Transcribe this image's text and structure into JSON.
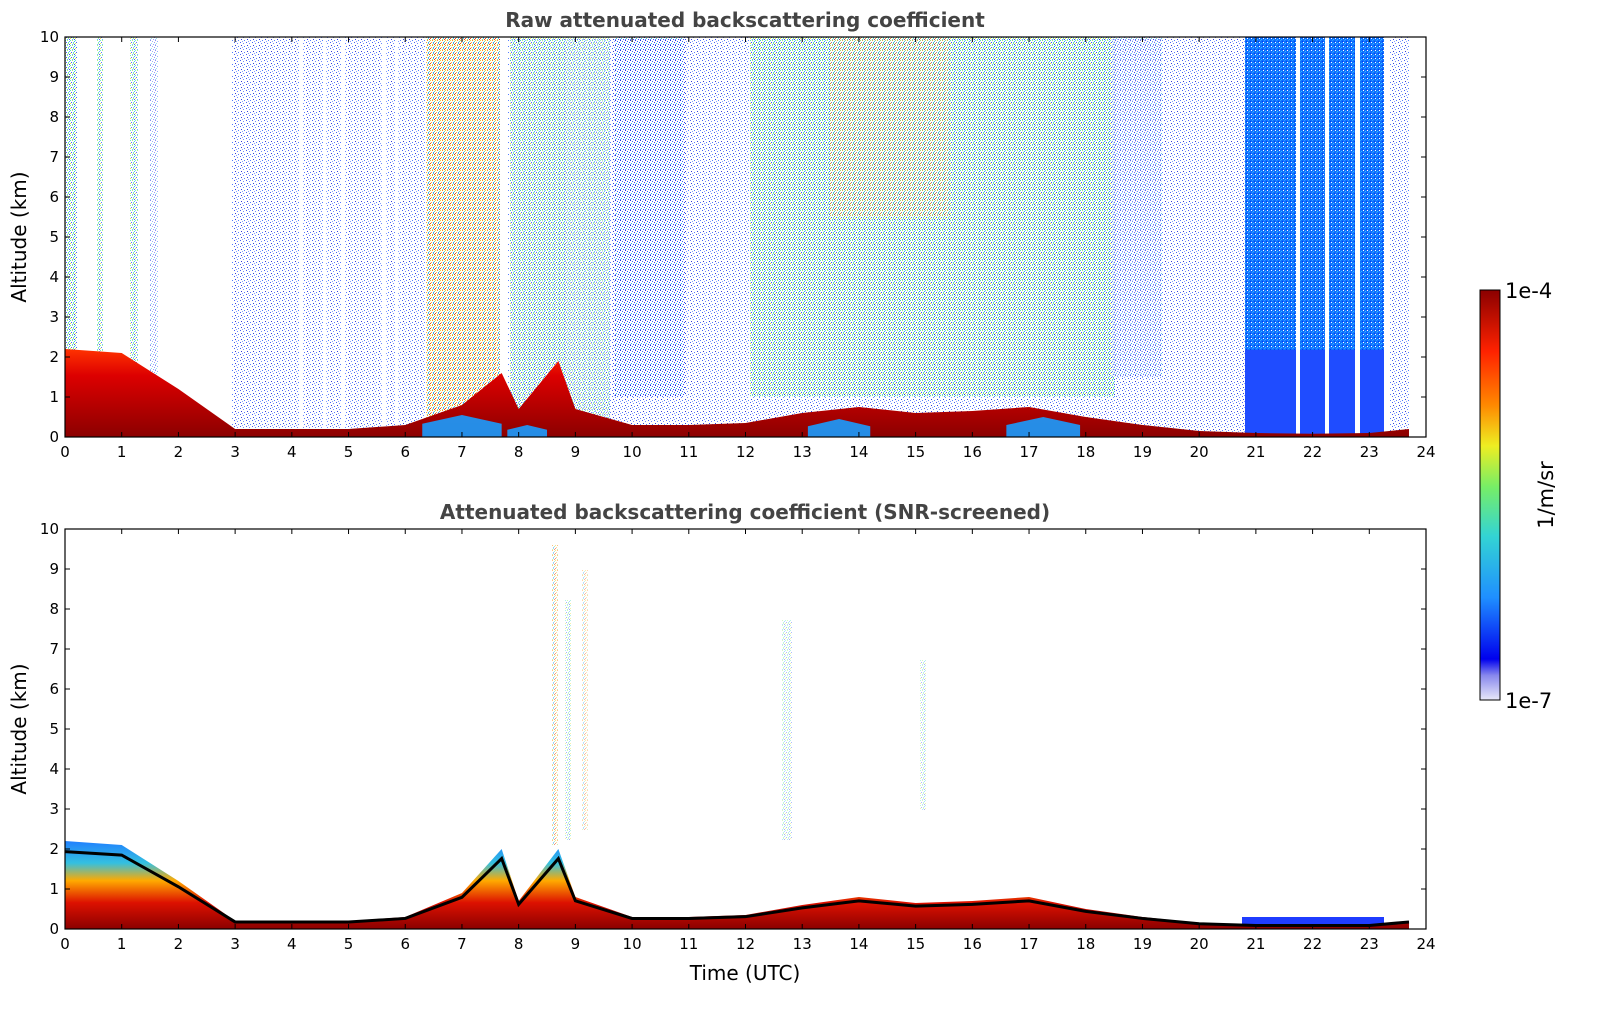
{
  "chart_data": [
    {
      "type": "heatmap",
      "title": "Raw attenuated backscattering coefficient",
      "xlabel": "",
      "ylabel": "Altitude (km)",
      "xlim": [
        0,
        24
      ],
      "ylim": [
        0,
        10
      ],
      "xticks": [
        "0",
        "1",
        "2",
        "3",
        "4",
        "5",
        "6",
        "7",
        "8",
        "9",
        "10",
        "11",
        "12",
        "13",
        "14",
        "15",
        "16",
        "17",
        "18",
        "19",
        "20",
        "21",
        "22",
        "23",
        "24"
      ],
      "yticks": [
        "0",
        "1",
        "2",
        "3",
        "4",
        "5",
        "6",
        "7",
        "8",
        "9",
        "10"
      ],
      "grid": false,
      "boundary_layer_top_km": [
        [
          0,
          2.2
        ],
        [
          1,
          2.1
        ],
        [
          2,
          1.2
        ],
        [
          2.5,
          0.7
        ],
        [
          3,
          0.2
        ],
        [
          4,
          0.2
        ],
        [
          5,
          0.2
        ],
        [
          6,
          0.3
        ],
        [
          7,
          0.8
        ],
        [
          7.7,
          1.6
        ],
        [
          8,
          0.7
        ],
        [
          8.7,
          1.9
        ],
        [
          9,
          0.7
        ],
        [
          10,
          0.3
        ],
        [
          11,
          0.3
        ],
        [
          12,
          0.35
        ],
        [
          13,
          0.6
        ],
        [
          14,
          0.75
        ],
        [
          15,
          0.6
        ],
        [
          16,
          0.65
        ],
        [
          17,
          0.75
        ],
        [
          18,
          0.5
        ],
        [
          19,
          0.3
        ],
        [
          20,
          0.15
        ],
        [
          21,
          0.1
        ],
        [
          22,
          0.08
        ],
        [
          23,
          0.1
        ],
        [
          23.7,
          0.2
        ]
      ],
      "aerosol_signal_regions": [
        {
          "x": [
            6.4,
            7.8
          ],
          "y": [
            0.5,
            10
          ],
          "level": "high"
        },
        {
          "x": [
            9.5,
            10.8
          ],
          "y": [
            0.7,
            10
          ],
          "level": "moderate"
        },
        {
          "x": [
            12.0,
            18.4
          ],
          "y": [
            1.0,
            10
          ],
          "level": "moderate-high"
        },
        {
          "x": [
            21.0,
            23.3
          ],
          "y": [
            0.0,
            10
          ],
          "level": "low"
        }
      ]
    },
    {
      "type": "heatmap",
      "title": "Attenuated backscattering coefficient (SNR-screened)",
      "xlabel": "Time (UTC)",
      "ylabel": "Altitude (km)",
      "xlim": [
        0,
        24
      ],
      "ylim": [
        0,
        10
      ],
      "xticks": [
        "0",
        "1",
        "2",
        "3",
        "4",
        "5",
        "6",
        "7",
        "8",
        "9",
        "10",
        "11",
        "12",
        "13",
        "14",
        "15",
        "16",
        "17",
        "18",
        "19",
        "20",
        "21",
        "22",
        "23",
        "24"
      ],
      "yticks": [
        "0",
        "1",
        "2",
        "3",
        "4",
        "5",
        "6",
        "7",
        "8",
        "9",
        "10"
      ],
      "grid": false,
      "boundary_layer_top_km": [
        [
          0,
          2.2
        ],
        [
          1,
          2.1
        ],
        [
          2,
          1.2
        ],
        [
          2.5,
          0.7
        ],
        [
          3,
          0.2
        ],
        [
          4,
          0.2
        ],
        [
          5,
          0.2
        ],
        [
          6,
          0.3
        ],
        [
          7,
          0.9
        ],
        [
          7.7,
          2.0
        ],
        [
          8,
          0.7
        ],
        [
          8.7,
          2.0
        ],
        [
          9,
          0.8
        ],
        [
          10,
          0.3
        ],
        [
          11,
          0.3
        ],
        [
          12,
          0.35
        ],
        [
          13,
          0.6
        ],
        [
          14,
          0.8
        ],
        [
          15,
          0.65
        ],
        [
          16,
          0.7
        ],
        [
          17,
          0.8
        ],
        [
          18,
          0.5
        ],
        [
          19,
          0.3
        ],
        [
          20,
          0.15
        ],
        [
          21,
          0.1
        ],
        [
          22,
          0.1
        ],
        [
          23,
          0.1
        ],
        [
          23.7,
          0.2
        ]
      ]
    }
  ],
  "colorbar": {
    "scale": "log",
    "max_label": "1e-4",
    "min_label": "1e-7",
    "unit_label": "1/m/sr",
    "colors": [
      "#e9e9f9",
      "#0000ee",
      "#1f8fff",
      "#33d4d4",
      "#77ee66",
      "#eeee22",
      "#ff8800",
      "#ff2200",
      "#8b0000"
    ]
  }
}
